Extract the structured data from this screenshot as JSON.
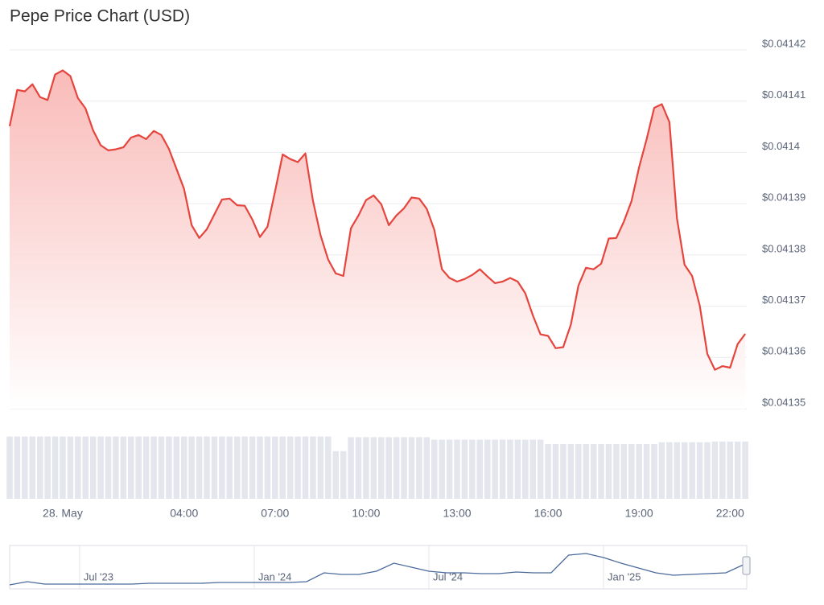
{
  "chart_data": [
    {
      "type": "area",
      "title": "Pepe Price Chart (USD)",
      "color": "#e5453d",
      "grid": true,
      "x": [
        -1.75,
        -1.5,
        -1.25,
        -1,
        -0.75,
        -0.5,
        -0.25,
        0,
        0.25,
        0.5,
        0.75,
        1,
        1.25,
        1.5,
        1.75,
        2,
        2.25,
        2.5,
        2.75,
        3,
        3.25,
        3.5,
        3.75,
        4,
        4.25,
        4.5,
        4.75,
        5,
        5.25,
        5.5,
        5.75,
        6,
        6.25,
        6.5,
        6.75,
        7,
        7.25,
        7.5,
        7.75,
        8,
        8.25,
        8.5,
        8.75,
        9,
        9.25,
        9.5,
        9.75,
        10,
        10.25,
        10.5,
        10.75,
        11,
        11.25,
        11.5,
        11.75,
        12,
        12.25,
        12.5,
        12.75,
        13,
        13.25,
        13.5,
        13.75,
        14,
        14.25,
        14.5,
        14.75,
        15,
        15.25,
        15.5,
        15.75,
        16,
        16.25,
        16.5,
        16.75,
        17,
        17.25,
        17.5,
        17.75,
        18,
        18.25,
        18.5,
        18.75,
        19,
        19.25,
        19.5,
        19.75,
        20,
        20.25,
        20.5,
        20.75,
        21,
        21.25,
        21.5,
        21.75,
        22,
        22.25,
        22.5
      ],
      "values": [
        0.0414051,
        0.0414122,
        0.0414119,
        0.0414133,
        0.0414108,
        0.0414102,
        0.0414152,
        0.041416,
        0.0414149,
        0.0414106,
        0.0414086,
        0.0414043,
        0.0414014,
        0.0414004,
        0.0414006,
        0.041401,
        0.0414029,
        0.0414034,
        0.0414026,
        0.0414042,
        0.0414034,
        0.0414007,
        0.0413968,
        0.0413929,
        0.0413858,
        0.0413833,
        0.041385,
        0.0413879,
        0.0413908,
        0.041391,
        0.0413897,
        0.0413896,
        0.0413869,
        0.0413835,
        0.0413855,
        0.0413924,
        0.0413996,
        0.0413987,
        0.0413981,
        0.0413998,
        0.0413905,
        0.0413838,
        0.0413791,
        0.0413764,
        0.0413759,
        0.0413852,
        0.0413877,
        0.0413907,
        0.0413916,
        0.0413899,
        0.0413858,
        0.0413877,
        0.0413891,
        0.0413912,
        0.041391,
        0.041389,
        0.0413849,
        0.0413772,
        0.0413755,
        0.0413748,
        0.0413753,
        0.0413761,
        0.0413772,
        0.0413758,
        0.0413745,
        0.0413748,
        0.0413755,
        0.0413748,
        0.0413725,
        0.0413682,
        0.0413645,
        0.0413642,
        0.0413618,
        0.041362,
        0.0413664,
        0.041374,
        0.0413775,
        0.0413772,
        0.0413783,
        0.0413832,
        0.0413833,
        0.0413865,
        0.0413905,
        0.0413971,
        0.0414026,
        0.0414087,
        0.0414094,
        0.0414059,
        0.0413871,
        0.0413781,
        0.0413759,
        0.0413701,
        0.0413607,
        0.0413576,
        0.0413583,
        0.041358,
        0.0413626,
        0.0413646
      ],
      "volume": [
        98,
        98,
        98,
        98,
        98,
        98,
        98,
        98,
        98,
        98,
        98,
        98,
        98,
        98,
        98,
        98,
        98,
        98,
        98,
        98,
        98,
        98,
        98,
        98,
        98,
        98,
        98,
        98,
        98,
        98,
        98,
        98,
        98,
        98,
        98,
        98,
        98,
        98,
        98,
        98,
        98,
        98,
        98,
        75,
        75,
        97,
        97,
        97,
        97,
        97,
        97,
        97,
        97,
        97,
        97,
        97,
        93,
        93,
        93,
        93,
        93,
        93,
        93,
        93,
        93,
        93,
        93,
        93,
        93,
        93,
        93,
        86,
        86,
        86,
        86,
        86,
        86,
        86,
        86,
        86,
        86,
        86,
        86,
        86,
        86,
        86,
        89,
        89,
        89,
        89,
        89,
        89,
        89,
        90,
        90,
        90,
        90,
        90
      ],
      "volume_color": "#e3e6ec",
      "volume_ylim": [
        0,
        100
      ],
      "xlim": [
        -1.75,
        22.55
      ],
      "xticks": [
        {
          "value": 0,
          "label": "28. May"
        },
        {
          "value": 4,
          "label": "04:00"
        },
        {
          "value": 7,
          "label": "07:00"
        },
        {
          "value": 10,
          "label": "10:00"
        },
        {
          "value": 13,
          "label": "13:00"
        },
        {
          "value": 16,
          "label": "16:00"
        },
        {
          "value": 19,
          "label": "19:00"
        },
        {
          "value": 22,
          "label": "22:00"
        }
      ],
      "ylim": [
        0.04135,
        0.04142
      ],
      "yticks": [
        {
          "value": 0.04135,
          "label": "$0.04135"
        },
        {
          "value": 0.04136,
          "label": "$0.04136"
        },
        {
          "value": 0.04137,
          "label": "$0.04137"
        },
        {
          "value": 0.04138,
          "label": "$0.04138"
        },
        {
          "value": 0.04139,
          "label": "$0.04139"
        },
        {
          "value": 0.0414,
          "label": "$0.0414"
        },
        {
          "value": 0.04141,
          "label": "$0.04141"
        },
        {
          "value": 0.04142,
          "label": "$0.04142"
        }
      ]
    },
    {
      "type": "line",
      "color": "#4a6a9c",
      "x": [
        2023.3,
        2023.35,
        2023.4,
        2023.45,
        2023.5,
        2023.55,
        2023.6,
        2023.65,
        2023.7,
        2023.75,
        2023.8,
        2023.85,
        2023.9,
        2023.95,
        2024,
        2024.05,
        2024.1,
        2024.15,
        2024.2,
        2024.25,
        2024.3,
        2024.35,
        2024.4,
        2024.45,
        2024.5,
        2024.55,
        2024.6,
        2024.65,
        2024.7,
        2024.75,
        2024.8,
        2024.85,
        2024.9,
        2024.95,
        2025,
        2025.05,
        2025.1,
        2025.15,
        2025.2,
        2025.25,
        2025.3,
        2025.35,
        2025.4
      ],
      "values": [
        5,
        9,
        6,
        6,
        6,
        6,
        6,
        6,
        7,
        7,
        7,
        7,
        8,
        8,
        8,
        8,
        8,
        9,
        20,
        18,
        18,
        22,
        32,
        27,
        22,
        20,
        20,
        19,
        19,
        21,
        20,
        20,
        42,
        44,
        39,
        32,
        26,
        20,
        17,
        18,
        19,
        20,
        30
      ],
      "xlim": [
        2023.3,
        2025.41
      ],
      "ylim": [
        0,
        52
      ],
      "xticks": [
        {
          "value": 2023.5,
          "label": "Jul '23"
        },
        {
          "value": 2024,
          "label": "Jan '24"
        },
        {
          "value": 2024.5,
          "label": "Jul '24"
        },
        {
          "value": 2025,
          "label": "Jan '25"
        }
      ]
    }
  ]
}
